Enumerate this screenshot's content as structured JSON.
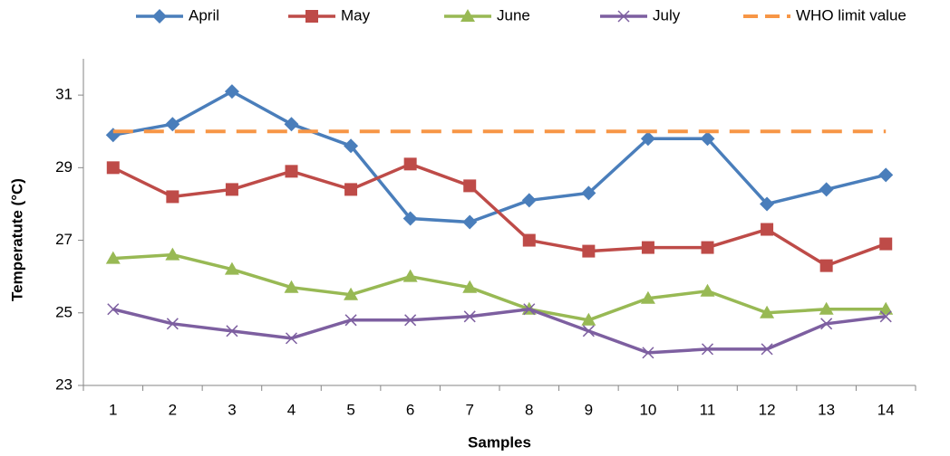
{
  "chart_data": {
    "type": "line",
    "x_label": "Samples",
    "y_label": "Temperatute (°C)",
    "categories": [
      "1",
      "2",
      "3",
      "4",
      "5",
      "6",
      "7",
      "8",
      "9",
      "10",
      "11",
      "12",
      "13",
      "14"
    ],
    "series": [
      {
        "name": "April",
        "color": "#4a7ebb",
        "marker": "diamond",
        "values": [
          29.9,
          30.2,
          31.1,
          30.2,
          29.6,
          27.6,
          27.5,
          28.1,
          28.3,
          29.8,
          29.8,
          28.0,
          28.4,
          28.8
        ]
      },
      {
        "name": "May",
        "color": "#be4b48",
        "marker": "square",
        "values": [
          29.0,
          28.2,
          28.4,
          28.9,
          28.4,
          29.1,
          28.5,
          27.0,
          26.7,
          26.8,
          26.8,
          27.3,
          26.3,
          26.9
        ]
      },
      {
        "name": "June",
        "color": "#98b954",
        "marker": "triangle",
        "values": [
          26.5,
          26.6,
          26.2,
          25.7,
          25.5,
          26.0,
          25.7,
          25.1,
          24.8,
          25.4,
          25.6,
          25.0,
          25.1,
          25.1
        ]
      },
      {
        "name": "July",
        "color": "#7d5fa0",
        "marker": "x",
        "values": [
          25.1,
          24.7,
          24.5,
          24.3,
          24.8,
          24.8,
          24.9,
          25.1,
          24.5,
          23.9,
          24.0,
          24.0,
          24.7,
          24.9
        ]
      },
      {
        "name": "WHO limit value",
        "color": "#f79646",
        "marker": "none",
        "dashed": true,
        "values": [
          30,
          30,
          30,
          30,
          30,
          30,
          30,
          30,
          30,
          30,
          30,
          30,
          30,
          30
        ]
      }
    ],
    "ylim": [
      23,
      32
    ],
    "yticks": [
      23,
      25,
      27,
      29,
      31
    ],
    "grid": false,
    "legend": "top"
  }
}
